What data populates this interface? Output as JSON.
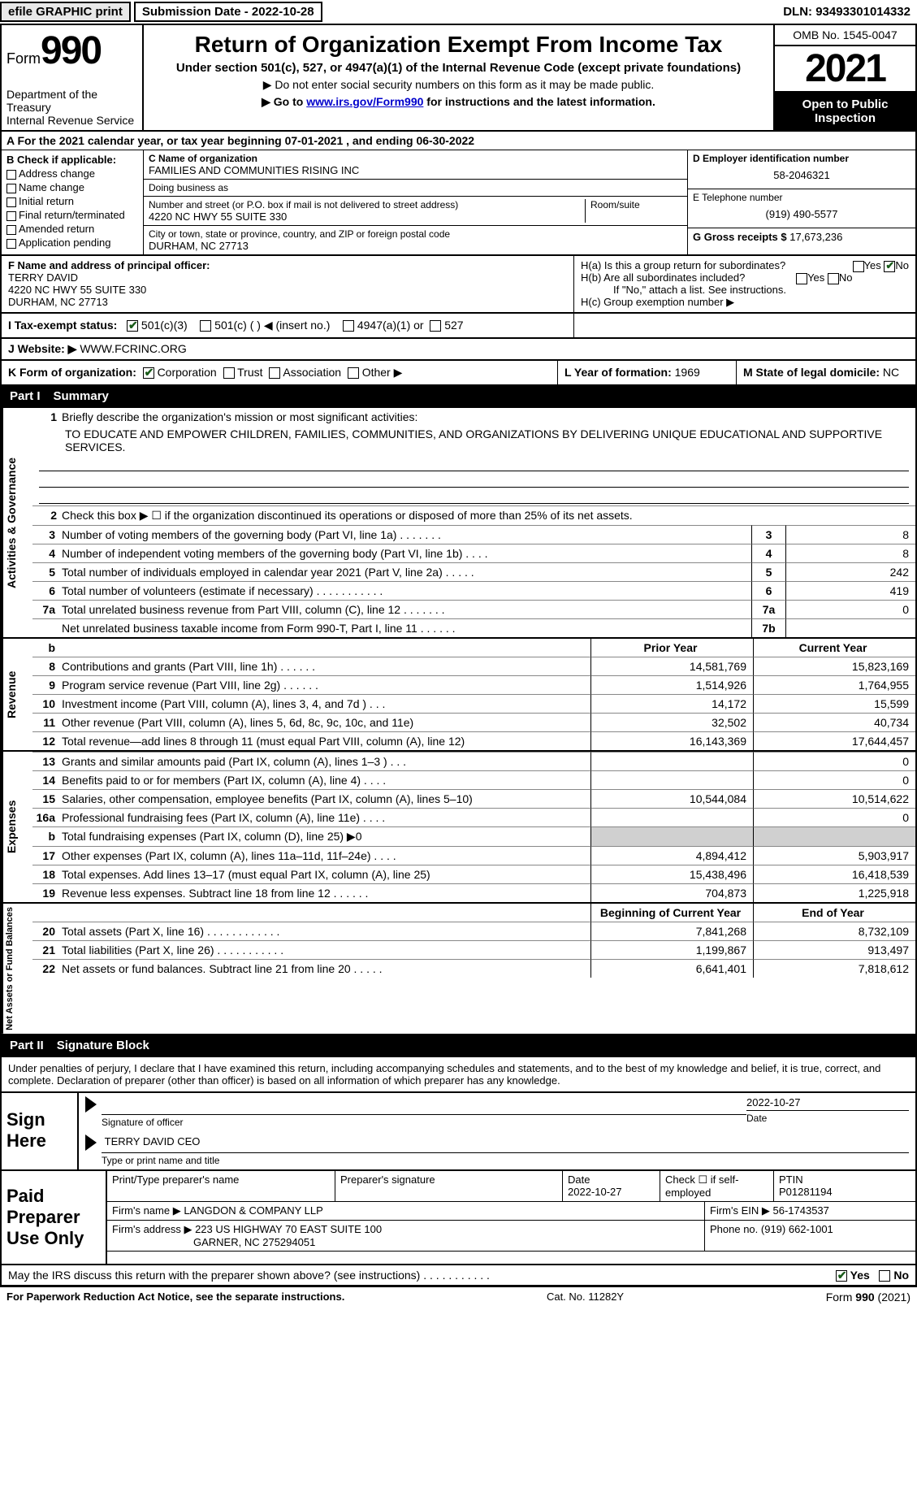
{
  "header": {
    "efile_btn": "efile GRAPHIC print",
    "sub_date_lbl": "Submission Date - ",
    "sub_date": "2022-10-28",
    "dln_lbl": "DLN: ",
    "dln": "93493301014332"
  },
  "top": {
    "form_word": "Form",
    "form_num": "990",
    "dept": "Department of the Treasury\nInternal Revenue Service",
    "title": "Return of Organization Exempt From Income Tax",
    "sub1": "Under section 501(c), 527, or 4947(a)(1) of the Internal Revenue Code (except private foundations)",
    "sub2": "▶ Do not enter social security numbers on this form as it may be made public.",
    "sub3_pre": "▶ Go to ",
    "sub3_link": "www.irs.gov/Form990",
    "sub3_post": " for instructions and the latest information.",
    "omb": "OMB No. 1545-0047",
    "year": "2021",
    "inspect": "Open to Public Inspection"
  },
  "row_a": "A For the 2021 calendar year, or tax year beginning 07-01-2021   , and ending 06-30-2022",
  "section_b": {
    "hdr": "B Check if applicable:",
    "opts": [
      "Address change",
      "Name change",
      "Initial return",
      "Final return/terminated",
      "Amended return",
      "Application pending"
    ]
  },
  "section_c": {
    "name_lbl": "C Name of organization",
    "name": "FAMILIES AND COMMUNITIES RISING INC",
    "dba_lbl": "Doing business as",
    "dba": "",
    "street_lbl": "Number and street (or P.O. box if mail is not delivered to street address)",
    "room_lbl": "Room/suite",
    "street": "4220 NC HWY 55 SUITE 330",
    "city_lbl": "City or town, state or province, country, and ZIP or foreign postal code",
    "city": "DURHAM, NC  27713"
  },
  "section_d": {
    "ein_lbl": "D Employer identification number",
    "ein": "58-2046321",
    "tel_lbl": "E Telephone number",
    "tel": "(919) 490-5577",
    "gross_lbl": "G Gross receipts $ ",
    "gross": "17,673,236"
  },
  "officer": {
    "lbl": "F Name and address of principal officer:",
    "name": "TERRY DAVID",
    "addr1": "4220 NC HWY 55 SUITE 330",
    "addr2": "DURHAM, NC  27713"
  },
  "h": {
    "a": "H(a)  Is this a group return for subordinates?",
    "b": "H(b)  Are all subordinates included?",
    "b_note": "If \"No,\" attach a list. See instructions.",
    "c": "H(c)  Group exemption number ▶",
    "yes": "Yes",
    "no": "No"
  },
  "row_i": {
    "lbl": "I   Tax-exempt status:",
    "o1": "501(c)(3)",
    "o2": "501(c) (  ) ◀ (insert no.)",
    "o3": "4947(a)(1) or",
    "o4": "527"
  },
  "row_j": {
    "lbl": "J   Website: ▶  ",
    "val": "WWW.FCRINC.ORG"
  },
  "row_k": {
    "lbl": "K Form of organization:",
    "o1": "Corporation",
    "o2": "Trust",
    "o3": "Association",
    "o4": "Other ▶"
  },
  "row_l": {
    "lbl": "L Year of formation: ",
    "val": "1969"
  },
  "row_m": {
    "lbl": "M State of legal domicile: ",
    "val": "NC"
  },
  "part1": {
    "lbl": "Part I",
    "title": "Summary"
  },
  "mission_lbl": "Briefly describe the organization's mission or most significant activities:",
  "mission": "TO EDUCATE AND EMPOWER CHILDREN, FAMILIES, COMMUNITIES, AND ORGANIZATIONS BY DELIVERING UNIQUE EDUCATIONAL AND SUPPORTIVE SERVICES.",
  "line2": "Check this box ▶ ☐  if the organization discontinued its operations or disposed of more than 25% of its net assets.",
  "gov_lines": [
    {
      "n": "3",
      "t": "Number of voting members of the governing body (Part VI, line 1a)   .    .    .    .    .    .    .",
      "box": "3",
      "v": "8"
    },
    {
      "n": "4",
      "t": "Number of independent voting members of the governing body (Part VI, line 1b)    .    .    .    .",
      "box": "4",
      "v": "8"
    },
    {
      "n": "5",
      "t": "Total number of individuals employed in calendar year 2021 (Part V, line 2a)    .    .    .    .    .",
      "box": "5",
      "v": "242"
    },
    {
      "n": "6",
      "t": "Total number of volunteers (estimate if necessary)     .    .    .    .    .    .    .    .    .    .    .",
      "box": "6",
      "v": "419"
    },
    {
      "n": "7a",
      "t": "Total unrelated business revenue from Part VIII, column (C), line 12    .    .    .    .    .    .    .",
      "box": "7a",
      "v": "0"
    },
    {
      "n": "",
      "t": "Net unrelated business taxable income from Form 990-T, Part I, line 11    .    .    .    .    .    .",
      "box": "7b",
      "v": ""
    }
  ],
  "col_hdrs": {
    "b": "b",
    "prior": "Prior Year",
    "current": "Current Year"
  },
  "revenue": [
    {
      "n": "8",
      "t": "Contributions and grants (Part VIII, line 1h)    .    .    .    .    .    .",
      "p": "14,581,769",
      "c": "15,823,169"
    },
    {
      "n": "9",
      "t": "Program service revenue (Part VIII, line 2g)    .    .    .    .    .    .",
      "p": "1,514,926",
      "c": "1,764,955"
    },
    {
      "n": "10",
      "t": "Investment income (Part VIII, column (A), lines 3, 4, and 7d )    .    .    .",
      "p": "14,172",
      "c": "15,599"
    },
    {
      "n": "11",
      "t": "Other revenue (Part VIII, column (A), lines 5, 6d, 8c, 9c, 10c, and 11e)",
      "p": "32,502",
      "c": "40,734"
    },
    {
      "n": "12",
      "t": "Total revenue—add lines 8 through 11 (must equal Part VIII, column (A), line 12)",
      "p": "16,143,369",
      "c": "17,644,457"
    }
  ],
  "expenses": [
    {
      "n": "13",
      "t": "Grants and similar amounts paid (Part IX, column (A), lines 1–3 )   .    .    .",
      "p": "",
      "c": "0"
    },
    {
      "n": "14",
      "t": "Benefits paid to or for members (Part IX, column (A), line 4)   .    .    .    .",
      "p": "",
      "c": "0"
    },
    {
      "n": "15",
      "t": "Salaries, other compensation, employee benefits (Part IX, column (A), lines 5–10)",
      "p": "10,544,084",
      "c": "10,514,622"
    },
    {
      "n": "16a",
      "t": "Professional fundraising fees (Part IX, column (A), line 11e)    .    .    .    .",
      "p": "",
      "c": "0"
    },
    {
      "n": "b",
      "t": "Total fundraising expenses (Part IX, column (D), line 25) ▶0",
      "p": "SHADE",
      "c": "SHADE"
    },
    {
      "n": "17",
      "t": "Other expenses (Part IX, column (A), lines 11a–11d, 11f–24e)    .    .    .    .",
      "p": "4,894,412",
      "c": "5,903,917"
    },
    {
      "n": "18",
      "t": "Total expenses. Add lines 13–17 (must equal Part IX, column (A), line 25)",
      "p": "15,438,496",
      "c": "16,418,539"
    },
    {
      "n": "19",
      "t": "Revenue less expenses. Subtract line 18 from line 12   .    .    .    .    .    .",
      "p": "704,873",
      "c": "1,225,918"
    }
  ],
  "net_hdrs": {
    "b": "Beginning of Current Year",
    "e": "End of Year"
  },
  "net": [
    {
      "n": "20",
      "t": "Total assets (Part X, line 16)  .    .    .    .    .    .    .    .    .    .    .    .",
      "p": "7,841,268",
      "c": "8,732,109"
    },
    {
      "n": "21",
      "t": "Total liabilities (Part X, line 26)   .    .    .    .    .    .    .    .    .    .    .",
      "p": "1,199,867",
      "c": "913,497"
    },
    {
      "n": "22",
      "t": "Net assets or fund balances. Subtract line 21 from line 20   .    .    .    .    .",
      "p": "6,641,401",
      "c": "7,818,612"
    }
  ],
  "part2": {
    "lbl": "Part II",
    "title": "Signature Block"
  },
  "sig_intro": "Under penalties of perjury, I declare that I have examined this return, including accompanying schedules and statements, and to the best of my knowledge and belief, it is true, correct, and complete. Declaration of preparer (other than officer) is based on all information of which preparer has any knowledge.",
  "sign": {
    "here": "Sign Here",
    "date": "2022-10-27",
    "sig_lbl": "Signature of officer",
    "date_lbl": "Date",
    "name": "TERRY DAVID  CEO",
    "name_lbl": "Type or print name and title"
  },
  "paid": {
    "lbl": "Paid Preparer Use Only",
    "c1": "Print/Type preparer's name",
    "c2": "Preparer's signature",
    "c3_lbl": "Date",
    "c3": "2022-10-27",
    "c4": "Check ☐ if self-employed",
    "c5_lbl": "PTIN",
    "c5": "P01281194",
    "firm_name_lbl": "Firm's name    ▶ ",
    "firm_name": "LANGDON & COMPANY LLP",
    "firm_ein_lbl": "Firm's EIN ▶ ",
    "firm_ein": "56-1743537",
    "firm_addr_lbl": "Firm's address ▶ ",
    "firm_addr1": "223 US HIGHWAY 70 EAST SUITE 100",
    "firm_addr2": "GARNER, NC  275294051",
    "phone_lbl": "Phone no. ",
    "phone": "(919) 662-1001"
  },
  "discuss": {
    "q": "May the IRS discuss this return with the preparer shown above? (see instructions)    .    .    .    .    .    .    .    .    .    .    .",
    "yes": "Yes",
    "no": "No"
  },
  "footer": {
    "l": "For Paperwork Reduction Act Notice, see the separate instructions.",
    "m": "Cat. No. 11282Y",
    "r": "Form 990 (2021)"
  },
  "side_labels": {
    "gov": "Activities & Governance",
    "rev": "Revenue",
    "exp": "Expenses",
    "net": "Net Assets or Fund Balances"
  }
}
